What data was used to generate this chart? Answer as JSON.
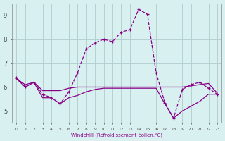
{
  "xlabel": "Windchill (Refroidissement éolien,°C)",
  "background_color": "#d8f0f0",
  "grid_color": "#b0cccc",
  "line_color": "#880088",
  "x_hours": [
    0,
    1,
    2,
    3,
    4,
    5,
    6,
    7,
    8,
    9,
    10,
    11,
    12,
    13,
    14,
    15,
    16,
    17,
    18,
    19,
    20,
    21,
    22,
    23
  ],
  "series1_dashed": [
    6.4,
    6.0,
    6.2,
    5.7,
    5.55,
    5.3,
    5.8,
    6.6,
    7.6,
    7.85,
    8.0,
    7.9,
    8.3,
    8.4,
    9.25,
    9.05,
    6.6,
    5.35,
    4.7,
    5.9,
    6.1,
    6.2,
    5.95,
    5.7
  ],
  "series2_flat": [
    6.35,
    6.0,
    6.2,
    5.85,
    5.85,
    5.85,
    5.95,
    6.0,
    6.0,
    6.0,
    6.0,
    6.0,
    6.0,
    6.0,
    6.0,
    6.0,
    6.0,
    6.0,
    6.0,
    6.0,
    6.05,
    6.1,
    6.15,
    5.75
  ],
  "series3_diag": [
    6.35,
    6.1,
    6.2,
    5.55,
    5.55,
    5.3,
    5.55,
    5.65,
    5.8,
    5.9,
    5.95,
    5.95,
    5.95,
    5.95,
    5.95,
    5.95,
    5.95,
    5.3,
    4.7,
    5.0,
    5.2,
    5.4,
    5.7,
    5.7
  ],
  "ylim": [
    4.5,
    9.5
  ],
  "yticks": [
    5,
    6,
    7,
    8,
    9
  ],
  "xlim": [
    -0.5,
    23.5
  ]
}
